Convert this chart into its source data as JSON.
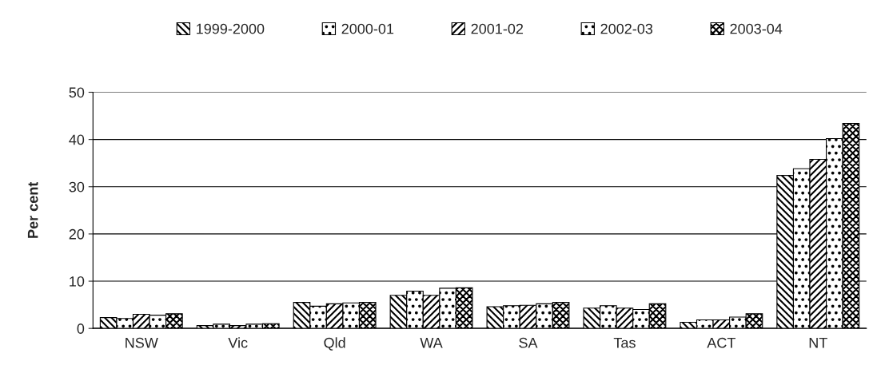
{
  "chart_data": {
    "type": "bar",
    "ylabel": "Per cent",
    "categories": [
      "NSW",
      "Vic",
      "Qld",
      "WA",
      "SA",
      "Tas",
      "ACT",
      "NT"
    ],
    "series": [
      {
        "name": "1999-2000",
        "color": "#000000",
        "values": [
          2.3,
          0.6,
          5.5,
          7.0,
          4.6,
          4.3,
          1.3,
          32.4
        ]
      },
      {
        "name": "2000-01",
        "color": "#000000",
        "values": [
          2.1,
          0.9,
          4.7,
          7.9,
          4.8,
          4.8,
          1.8,
          33.8
        ]
      },
      {
        "name": "2001-02",
        "color": "#000000",
        "values": [
          3.0,
          0.6,
          5.2,
          7.0,
          4.9,
          4.3,
          1.8,
          35.8
        ]
      },
      {
        "name": "2002-03",
        "color": "#000000",
        "values": [
          2.8,
          0.9,
          5.4,
          8.5,
          5.2,
          4.0,
          2.4,
          40.2
        ]
      },
      {
        "name": "2003-04",
        "color": "#000000",
        "values": [
          3.1,
          1.0,
          5.5,
          8.6,
          5.5,
          5.2,
          3.1,
          43.4
        ]
      }
    ],
    "ylim": [
      0,
      50
    ],
    "yticks": [
      0,
      10,
      20,
      30,
      40,
      50
    ],
    "grid": "y",
    "legend": "top"
  }
}
